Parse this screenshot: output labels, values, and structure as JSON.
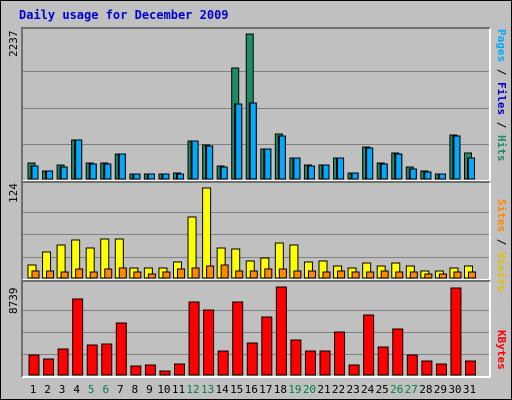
{
  "title": "Daily usage for December 2009",
  "colors": {
    "hits": "#1e8c64",
    "files": "#00aaff",
    "pages": "#00aaff",
    "visits": "#ffff00",
    "sites": "#ff8800",
    "kbytes": "#ff0000",
    "gridline": "#808080",
    "weekend": "#008040",
    "weekday": "#000000"
  },
  "labels": {
    "hits_max": "2237",
    "visits_max": "124",
    "kbytes_max": "8739",
    "pages": "Pages",
    "files": "Files",
    "hits": "Hits",
    "sites": "Sites",
    "visits": "Visits",
    "kbytes": "KBytes",
    "sep": " / "
  },
  "chart_data": {
    "type": "bar",
    "title": "Daily usage for December 2009",
    "categories": [
      "1",
      "2",
      "3",
      "4",
      "5",
      "6",
      "7",
      "8",
      "9",
      "10",
      "11",
      "12",
      "13",
      "14",
      "15",
      "16",
      "17",
      "18",
      "19",
      "20",
      "21",
      "22",
      "23",
      "24",
      "25",
      "26",
      "27",
      "28",
      "29",
      "30",
      "31"
    ],
    "weekend_days": [
      "5",
      "6",
      "12",
      "13",
      "19",
      "20",
      "26",
      "27"
    ],
    "panels": [
      {
        "name": "hits_files_pages",
        "ymax": 2237,
        "series": [
          {
            "name": "Hits",
            "values": [
              240,
              130,
              210,
              600,
              240,
              240,
              390,
              80,
              80,
              80,
              90,
              590,
              520,
              200,
              1720,
              2237,
              470,
              690,
              330,
              220,
              220,
              330,
              100,
              490,
              250,
              400,
              190,
              130,
              80,
              680,
              400
            ]
          },
          {
            "name": "Files",
            "values": [
              200,
              120,
              190,
              600,
              230,
              230,
              380,
              70,
              70,
              70,
              80,
              580,
              510,
              190,
              1160,
              1180,
              460,
              670,
              320,
              200,
              210,
              320,
              90,
              480,
              230,
              380,
              160,
              110,
              70,
              660,
              330
            ]
          },
          {
            "name": "Pages",
            "values": [
              200,
              120,
              190,
              600,
              230,
              230,
              380,
              70,
              70,
              70,
              80,
              580,
              510,
              190,
              1160,
              1180,
              460,
              670,
              320,
              200,
              210,
              320,
              90,
              480,
              230,
              380,
              160,
              110,
              70,
              660,
              330
            ]
          }
        ]
      },
      {
        "name": "visits_sites",
        "ymax": 124,
        "series": [
          {
            "name": "Visits",
            "values": [
              18,
              36,
              46,
              52,
              42,
              54,
              54,
              14,
              14,
              14,
              22,
              84,
              124,
              42,
              40,
              24,
              28,
              48,
              46,
              22,
              24,
              16,
              14,
              20,
              16,
              20,
              16,
              10,
              10,
              14,
              16
            ]
          },
          {
            "name": "Sites",
            "values": [
              10,
              10,
              8,
              12,
              8,
              12,
              14,
              8,
              6,
              8,
              12,
              14,
              16,
              18,
              10,
              10,
              12,
              12,
              10,
              10,
              8,
              10,
              8,
              8,
              10,
              8,
              8,
              6,
              6,
              8,
              8
            ]
          }
        ]
      },
      {
        "name": "kbytes",
        "ymax": 8739,
        "series": [
          {
            "name": "KBytes",
            "values": [
              2000,
              1600,
              2600,
              7500,
              3000,
              3100,
              5200,
              900,
              1000,
              400,
              1100,
              7200,
              6500,
              2400,
              7200,
              3200,
              5800,
              8739,
              3500,
              2400,
              2400,
              4300,
              1000,
              6000,
              2800,
              4600,
              2000,
              1400,
              1100,
              8600,
              1400
            ]
          }
        ]
      }
    ]
  }
}
